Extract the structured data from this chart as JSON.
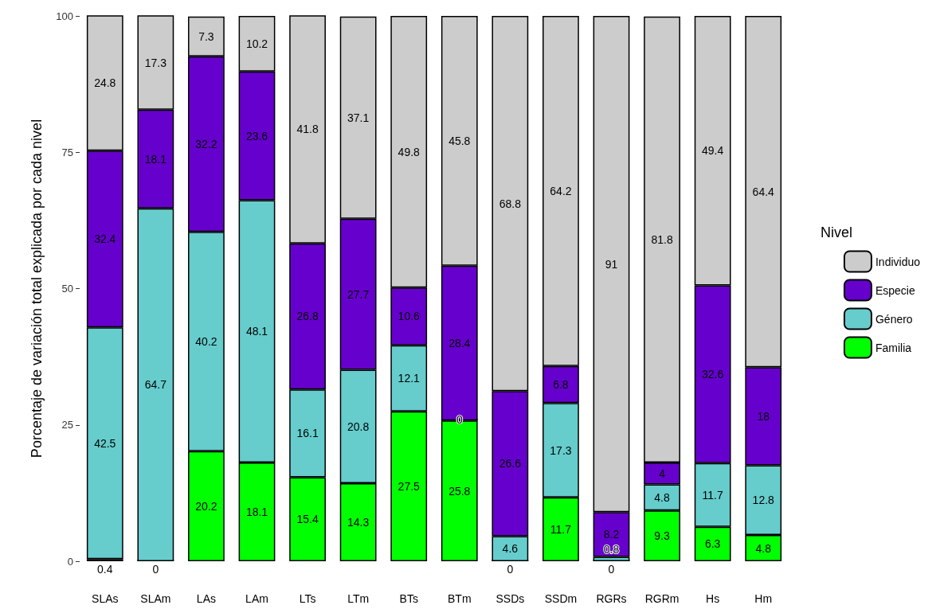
{
  "chart_data": {
    "type": "bar",
    "stacked": true,
    "ylabel": "Porcentaje de variación total explicada por cada nivel",
    "legend_title": "Nivel",
    "legend": "right",
    "grid": false,
    "data_labels": true,
    "categories": [
      "SLAs",
      "SLAm",
      "LAs",
      "LAm",
      "LTs",
      "LTm",
      "BTs",
      "BTm",
      "SSDs",
      "SSDm",
      "RGRs",
      "RGRm",
      "Hs",
      "Hm"
    ],
    "ylim": [
      0,
      100
    ],
    "yticks": [
      0,
      25,
      50,
      75,
      100
    ],
    "series": [
      {
        "name": "Familia",
        "color": "#00ff00",
        "values": [
          0.4,
          0,
          20.2,
          18.1,
          15.4,
          14.3,
          27.5,
          25.8,
          0,
          11.7,
          0,
          9.3,
          6.3,
          4.8
        ]
      },
      {
        "name": "Género",
        "color": "#66cccc",
        "values": [
          42.5,
          64.7,
          40.2,
          48.1,
          16.1,
          20.8,
          12.1,
          0,
          4.6,
          17.3,
          0.8,
          4.8,
          11.7,
          12.8
        ]
      },
      {
        "name": "Especie",
        "color": "#6600cc",
        "values": [
          32.4,
          18.1,
          32.2,
          23.6,
          26.8,
          27.7,
          10.6,
          28.4,
          26.6,
          6.8,
          8.2,
          4,
          32.6,
          18
        ]
      },
      {
        "name": "Individuo",
        "color": "#cccccc",
        "values": [
          24.8,
          17.3,
          7.3,
          10.2,
          41.8,
          37.1,
          49.8,
          45.8,
          68.8,
          64.2,
          91,
          81.8,
          49.4,
          64.4
        ]
      }
    ]
  }
}
